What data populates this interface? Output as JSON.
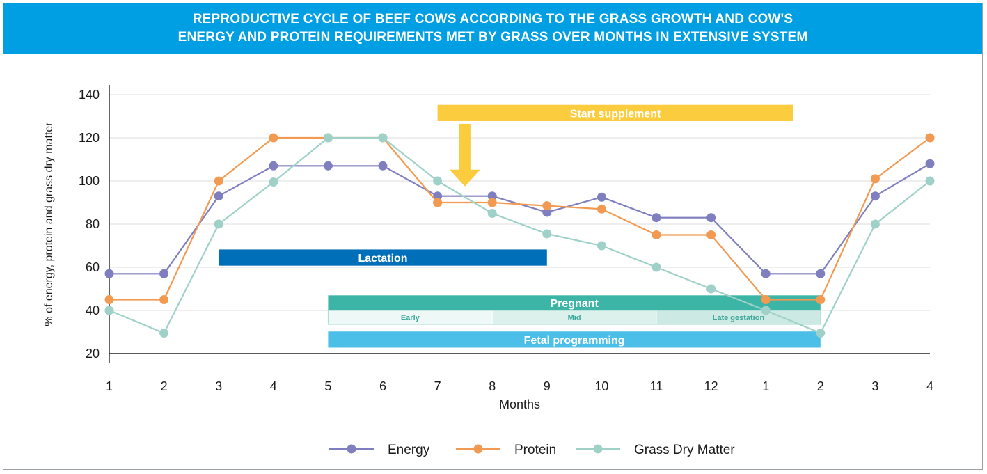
{
  "header": {
    "title_line1": "REPRODUCTIVE CYCLE OF BEEF COWS ACCORDING TO THE GRASS GROWTH AND COW'S",
    "title_line2": "ENERGY AND PROTEIN REQUIREMENTS MET BY GRASS OVER MONTHS IN EXTENSIVE SYSTEM"
  },
  "chart_data": {
    "type": "line",
    "categories": [
      "1",
      "2",
      "3",
      "4",
      "5",
      "6",
      "7",
      "8",
      "9",
      "10",
      "11",
      "12",
      "1",
      "2",
      "3",
      "4"
    ],
    "xlabel": "Months",
    "ylabel": "% of energy, protein and grass dry matter",
    "ylim": [
      20,
      140
    ],
    "yticks": [
      20,
      40,
      60,
      80,
      100,
      120,
      140
    ],
    "grid": true,
    "legend_position": "bottom",
    "series": [
      {
        "name": "Energy",
        "color": "#7f7fbf",
        "values": [
          57,
          57,
          93,
          107,
          107,
          107,
          93,
          93,
          85.5,
          92.5,
          83,
          83,
          57,
          57,
          93,
          108
        ]
      },
      {
        "name": "Protein",
        "color": "#f29a52",
        "values": [
          45,
          45,
          100,
          120,
          120,
          120,
          90,
          90,
          88.5,
          87,
          75,
          75,
          45,
          45,
          101,
          120
        ]
      },
      {
        "name": "Grass Dry Matter",
        "color": "#9fd1c8",
        "values": [
          40,
          29.5,
          80,
          99.5,
          120,
          120,
          100,
          85,
          75.5,
          70,
          60,
          50,
          40,
          29.5,
          80,
          100
        ]
      }
    ],
    "bands": [
      {
        "label": "Start supplement",
        "start_index": 6,
        "end_index": 12.5,
        "y_center": 131.5,
        "height": 7.5,
        "color": "#fccc3f"
      },
      {
        "label": "Lactation",
        "start_index": 2,
        "end_index": 8,
        "y_center": 64.5,
        "height": 7.5,
        "color": "#006fb9"
      },
      {
        "label": "Pregnant",
        "start_index": 4,
        "end_index": 13,
        "y_center": 43.5,
        "height": 7,
        "color": "#3db5a6"
      },
      {
        "label": "Fetal programming",
        "start_index": 4,
        "end_index": 13,
        "y_center": 26.5,
        "height": 7.5,
        "color": "#4bbfe8"
      }
    ],
    "pregnancy_stages": [
      "Early",
      "Mid",
      "Late gestation"
    ],
    "supplement_arrow": {
      "x_index": 6.5,
      "y_top": 126.5,
      "y_bottom": 97.5,
      "color": "#fccc3f"
    }
  }
}
